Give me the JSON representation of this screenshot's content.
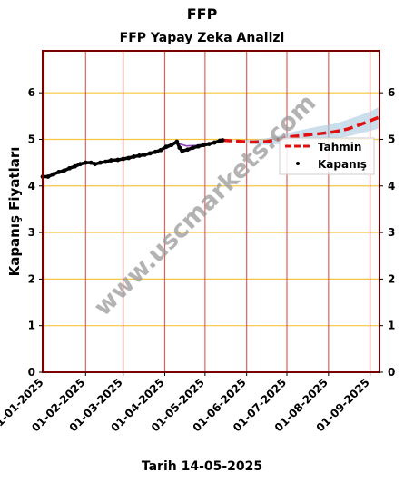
{
  "header": {
    "title": "FFP",
    "subtitle": "FFP Yapay Zeka Analizi"
  },
  "footer": {
    "text": "Tarih 14-05-2025"
  },
  "watermark": "www.uscmarkets.com",
  "chart_data": {
    "type": "line",
    "ylabel": "Kapanış Fiyatları",
    "ylim": [
      0,
      6.9
    ],
    "yticks": [
      0,
      1,
      2,
      3,
      4,
      5,
      6
    ],
    "xlim": [
      "2024-12-31",
      "2025-09-08"
    ],
    "xticks": [
      "2025-01-01",
      "2025-02-01",
      "2025-03-01",
      "2025-04-01",
      "2025-05-01",
      "2025-06-01",
      "2025-07-01",
      "2025-08-01",
      "2025-09-01"
    ],
    "xtick_labels": [
      "01-01-2025",
      "01-02-2025",
      "01-03-2025",
      "01-04-2025",
      "01-05-2025",
      "01-06-2025",
      "01-07-2025",
      "01-08-2025",
      "01-09-2025"
    ],
    "grid": {
      "horizontal_color": "#f5c542",
      "vertical_color": "#e06060"
    },
    "legend": {
      "placement": "right",
      "entries": [
        "Tahmin",
        "Kapanış"
      ]
    },
    "series": [
      {
        "name": "Kapanış",
        "style": "dots",
        "color": "#000000",
        "points": [
          [
            "2024-12-31",
            4.2
          ],
          [
            "2025-01-04",
            4.2
          ],
          [
            "2025-01-08",
            4.25
          ],
          [
            "2025-01-12",
            4.3
          ],
          [
            "2025-01-16",
            4.33
          ],
          [
            "2025-01-20",
            4.38
          ],
          [
            "2025-01-24",
            4.42
          ],
          [
            "2025-01-28",
            4.47
          ],
          [
            "2025-02-01",
            4.5
          ],
          [
            "2025-02-05",
            4.5
          ],
          [
            "2025-02-08",
            4.47
          ],
          [
            "2025-02-12",
            4.5
          ],
          [
            "2025-02-16",
            4.52
          ],
          [
            "2025-02-20",
            4.55
          ],
          [
            "2025-02-25",
            4.56
          ],
          [
            "2025-03-01",
            4.58
          ],
          [
            "2025-03-05",
            4.6
          ],
          [
            "2025-03-09",
            4.63
          ],
          [
            "2025-03-13",
            4.65
          ],
          [
            "2025-03-17",
            4.67
          ],
          [
            "2025-03-21",
            4.7
          ],
          [
            "2025-03-25",
            4.73
          ],
          [
            "2025-03-29",
            4.77
          ],
          [
            "2025-04-02",
            4.84
          ],
          [
            "2025-04-06",
            4.88
          ],
          [
            "2025-04-10",
            4.95
          ],
          [
            "2025-04-12",
            4.82
          ],
          [
            "2025-04-14",
            4.75
          ],
          [
            "2025-04-18",
            4.78
          ],
          [
            "2025-04-22",
            4.82
          ],
          [
            "2025-04-26",
            4.85
          ],
          [
            "2025-04-30",
            4.88
          ],
          [
            "2025-05-04",
            4.9
          ],
          [
            "2025-05-08",
            4.93
          ],
          [
            "2025-05-12",
            4.97
          ],
          [
            "2025-05-14",
            4.98
          ]
        ]
      },
      {
        "name": "Tahmin",
        "style": "dashed",
        "color": "#e01010",
        "points": [
          [
            "2025-05-14",
            4.98
          ],
          [
            "2025-05-25",
            4.96
          ],
          [
            "2025-06-05",
            4.94
          ],
          [
            "2025-06-15",
            4.95
          ],
          [
            "2025-06-25",
            5.0
          ],
          [
            "2025-07-05",
            5.06
          ],
          [
            "2025-07-15",
            5.09
          ],
          [
            "2025-07-25",
            5.12
          ],
          [
            "2025-08-05",
            5.16
          ],
          [
            "2025-08-15",
            5.22
          ],
          [
            "2025-08-25",
            5.32
          ],
          [
            "2025-09-01",
            5.4
          ],
          [
            "2025-09-08",
            5.48
          ]
        ],
        "band": {
          "color": "#a8c8e0",
          "lower": [
            4.98,
            4.95,
            4.9,
            4.88,
            4.9,
            4.95,
            4.97,
            4.99,
            5.02,
            5.06,
            5.13,
            5.18,
            5.24
          ],
          "upper": [
            4.98,
            4.98,
            4.99,
            5.02,
            5.08,
            5.16,
            5.22,
            5.28,
            5.33,
            5.42,
            5.52,
            5.6,
            5.7
          ]
        }
      },
      {
        "name": "overlay",
        "style": "line",
        "color": "#9040c0",
        "points": [
          [
            "2025-03-28",
            4.76
          ],
          [
            "2025-04-03",
            4.82
          ],
          [
            "2025-04-10",
            4.92
          ],
          [
            "2025-04-17",
            4.86
          ],
          [
            "2025-04-24",
            4.87
          ],
          [
            "2025-05-01",
            4.9
          ],
          [
            "2025-05-08",
            4.94
          ],
          [
            "2025-05-14",
            4.98
          ]
        ]
      }
    ]
  }
}
